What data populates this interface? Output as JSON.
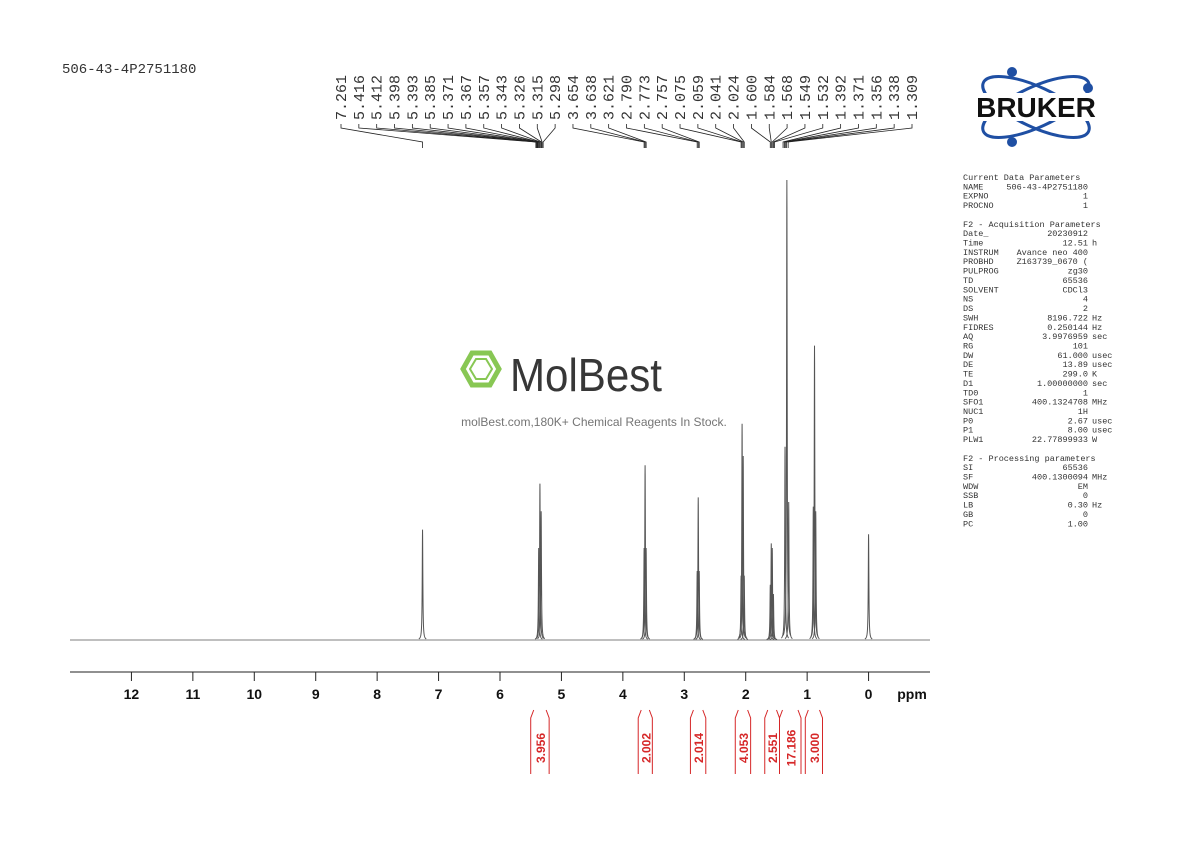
{
  "sample_id": "506-43-4P2751180",
  "watermark": {
    "brand": "MolBest",
    "tagline": "molBest.com,180K+ Chemical Reagents In Stock."
  },
  "logo": "BRUKER",
  "chart_data": {
    "type": "nmr",
    "xlabel": "ppm",
    "xlim": [
      13,
      -1
    ],
    "xticks": [
      12,
      11,
      10,
      9,
      8,
      7,
      6,
      5,
      4,
      3,
      2,
      1,
      0
    ],
    "ylim": [
      0,
      100
    ],
    "color": "#555555",
    "peak_labels": [
      7.261,
      5.416,
      5.412,
      5.398,
      5.393,
      5.385,
      5.371,
      5.367,
      5.357,
      5.343,
      5.326,
      5.315,
      5.298,
      3.654,
      3.638,
      3.621,
      2.79,
      2.773,
      2.757,
      2.075,
      2.059,
      2.041,
      2.024,
      1.6,
      1.584,
      1.568,
      1.549,
      1.532,
      1.392,
      1.371,
      1.356,
      1.338,
      1.309
    ],
    "peak_label_texts": [
      "7.261",
      "5.416",
      "5.412",
      "5.398",
      "5.393",
      "5.385",
      "5.371",
      "5.367",
      "5.357",
      "5.343",
      "5.326",
      "5.315",
      "5.298",
      "3.654",
      "3.638",
      "3.621",
      "2.790",
      "2.773",
      "2.757",
      "2.075",
      "2.059",
      "2.041",
      "2.024",
      "1.600",
      "1.584",
      "1.568",
      "1.549",
      "1.532",
      "1.392",
      "1.371",
      "1.356",
      "1.338",
      "1.309"
    ],
    "peaks": {
      "x": [
        7.261,
        5.37,
        5.35,
        5.33,
        3.654,
        3.638,
        3.621,
        2.79,
        2.773,
        2.757,
        2.075,
        2.059,
        2.041,
        2.024,
        1.6,
        1.584,
        1.568,
        1.549,
        1.36,
        1.33,
        1.3,
        0.9,
        0.88,
        0.86,
        0.0
      ],
      "values": [
        24,
        20,
        34,
        28,
        20,
        38,
        20,
        15,
        31,
        15,
        14,
        47,
        40,
        14,
        12,
        21,
        20,
        10,
        42,
        100,
        30,
        29,
        64,
        28,
        23
      ]
    },
    "integrals": {
      "ranges": [
        [
          5.5,
          5.2
        ],
        [
          3.75,
          3.52
        ],
        [
          2.9,
          2.65
        ],
        [
          2.17,
          1.92
        ],
        [
          1.69,
          1.45
        ],
        [
          1.45,
          1.1
        ],
        [
          1.03,
          0.75
        ]
      ],
      "values": [
        3.956,
        2.002,
        2.014,
        4.053,
        2.551,
        17.186,
        3
      ],
      "value_labels": [
        "3.956",
        "2.002",
        "2.014",
        "4.053",
        "2.551",
        "17.186",
        "3.000"
      ],
      "color": "#d62728"
    }
  },
  "parameters": {
    "sections": [
      {
        "title": "Current Data Parameters",
        "rows": [
          [
            "NAME",
            "506-43-4P2751180"
          ],
          [
            "EXPNO",
            "1"
          ],
          [
            "PROCNO",
            "1"
          ]
        ]
      },
      {
        "title": "F2 - Acquisition Parameters",
        "rows": [
          [
            "Date_",
            "20230912"
          ],
          [
            "Time",
            "12.51",
            "h"
          ],
          [
            "INSTRUM",
            "Avance neo 400"
          ],
          [
            "PROBHD",
            "Z163739_0670 ("
          ],
          [
            "PULPROG",
            "zg30"
          ],
          [
            "TD",
            "65536"
          ],
          [
            "SOLVENT",
            "CDCl3"
          ],
          [
            "NS",
            "4"
          ],
          [
            "DS",
            "2"
          ],
          [
            "SWH",
            "8196.722",
            "Hz"
          ],
          [
            "FIDRES",
            "0.250144",
            "Hz"
          ],
          [
            "AQ",
            "3.9976959",
            "sec"
          ],
          [
            "RG",
            "101"
          ],
          [
            "DW",
            "61.000",
            "usec"
          ],
          [
            "DE",
            "13.89",
            "usec"
          ],
          [
            "TE",
            "299.0",
            "K"
          ],
          [
            "D1",
            "1.00000000",
            "sec"
          ],
          [
            "TD0",
            "1"
          ],
          [
            "SFO1",
            "400.1324708",
            "MHz"
          ],
          [
            "NUC1",
            "1H"
          ],
          [
            "P0",
            "2.67",
            "usec"
          ],
          [
            "P1",
            "8.00",
            "usec"
          ],
          [
            "PLW1",
            "22.77899933",
            "W"
          ]
        ]
      },
      {
        "title": "F2 - Processing parameters",
        "rows": [
          [
            "SI",
            "65536"
          ],
          [
            "SF",
            "400.1300094",
            "MHz"
          ],
          [
            "WDW",
            "EM"
          ],
          [
            "SSB",
            "0"
          ],
          [
            "LB",
            "0.30",
            "Hz"
          ],
          [
            "GB",
            "0"
          ],
          [
            "PC",
            "1.00"
          ]
        ]
      }
    ]
  }
}
